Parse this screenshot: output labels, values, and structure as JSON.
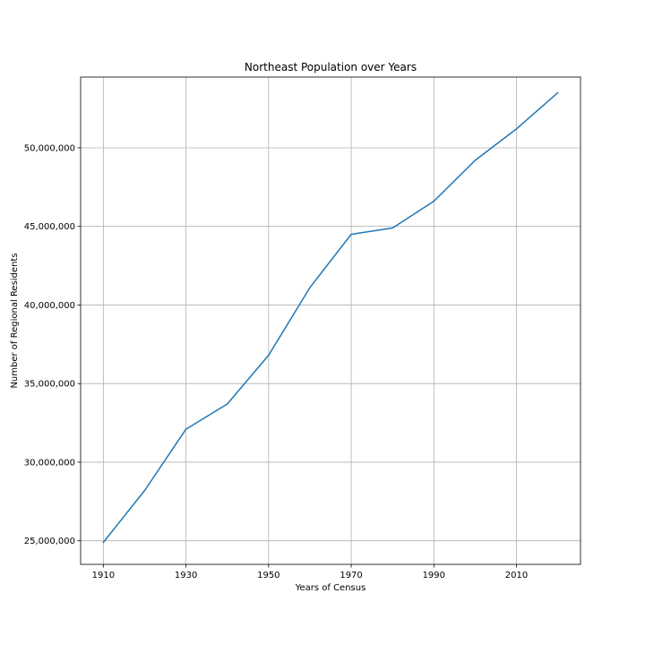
{
  "chart_data": {
    "type": "line",
    "title": "Northeast Population over Years",
    "xlabel": "Years of Census",
    "ylabel": "Number of Regional Residents",
    "xlim": [
      1904.5,
      2025.5
    ],
    "ylim": [
      23500000,
      54500000
    ],
    "x_ticks": [
      1910,
      1930,
      1950,
      1970,
      1990,
      2010
    ],
    "y_ticks": [
      25000000,
      30000000,
      35000000,
      40000000,
      45000000,
      50000000
    ],
    "y_tick_labels": [
      "25,000,000",
      "30,000,000",
      "35,000,000",
      "40,000,000",
      "45,000,000",
      "50,000,000"
    ],
    "grid": true,
    "series": [
      {
        "color": "#1f77b4",
        "x": [
          1910,
          1920,
          1930,
          1940,
          1950,
          1960,
          1970,
          1980,
          1990,
          2000,
          2010,
          2020
        ],
        "y": [
          24900000,
          28200000,
          32100000,
          33700000,
          36800000,
          41100000,
          44500000,
          44900000,
          46600000,
          49200000,
          51200000,
          53500000
        ]
      }
    ]
  }
}
